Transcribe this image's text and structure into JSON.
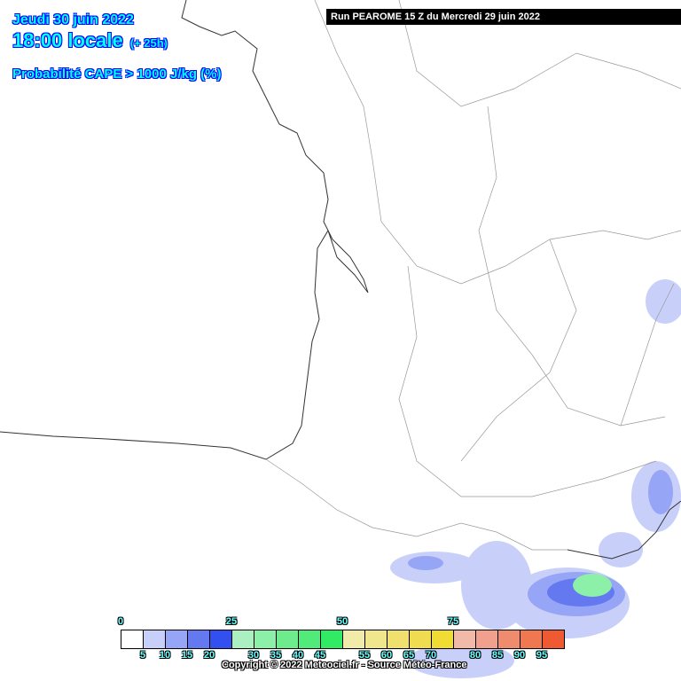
{
  "header": {
    "date": "Jeudi 30 juin 2022",
    "hour": "18:00 locale",
    "lead": "(+ 25h)",
    "parameter": "Probabilité CAPE > 1000 J/kg (%)"
  },
  "run_banner": "Run PEAROME 15 Z du Mercredi 29 juin 2022",
  "legend": {
    "values": [
      "0",
      "5",
      "10",
      "15",
      "20",
      "25",
      "30",
      "35",
      "40",
      "45",
      "50",
      "55",
      "60",
      "65",
      "70",
      "75",
      "80",
      "85",
      "90",
      "95"
    ],
    "colors": [
      "#ffffff",
      "#c8d0fa",
      "#96a5f5",
      "#6478f0",
      "#3250f0",
      "#aaf0c0",
      "#8cf0a8",
      "#6eeb8c",
      "#50eb78",
      "#32eb64",
      "#f0eba8",
      "#f0e68c",
      "#f0e16e",
      "#f0dc50",
      "#f0dc32",
      "#f0b9a8",
      "#f0a08c",
      "#f08c6e",
      "#f07850",
      "#f05a32"
    ]
  },
  "copyright": "Copyright © 2022 Meteociel.fr - Source Météo-France"
}
